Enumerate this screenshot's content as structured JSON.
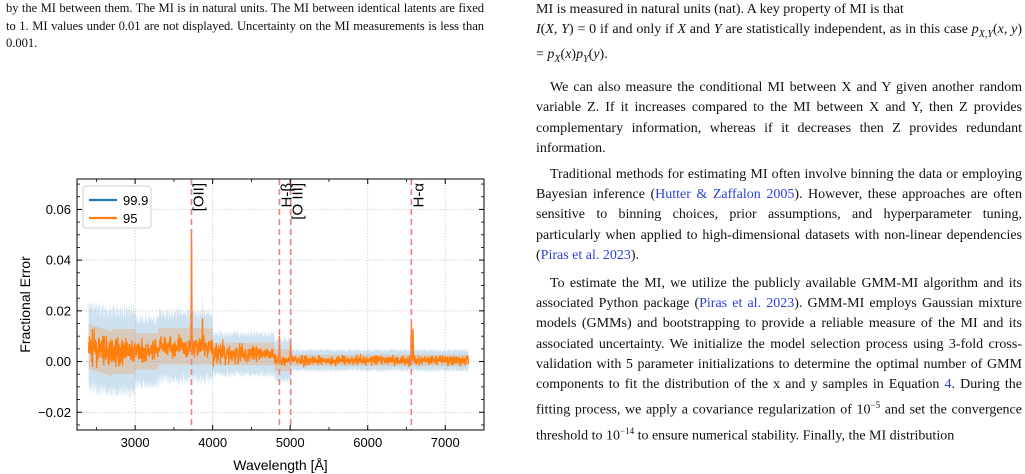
{
  "left_caption": "by the MI between them. The MI is in natural units. The MI between identical latents are fixed to 1. MI values under 0.01 are not displayed. Uncertainty on the MI measurements is less than 0.001.",
  "right_text": {
    "line_top": "MI is measured in natural units (nat). A key property of MI is that",
    "line_indep_a": "I(X, Y) = 0 if and only if X and Y are statistically independent, as in",
    "line_indep_b": "this case p",
    "para_cmi": "We can also measure the conditional MI between X and Y given another random variable Z. If it increases compared to the MI between X and Y, then Z provides complementary information, whereas if it decreases then Z provides redundant information.",
    "para_trad_a": "Traditional methods for estimating MI often involve binning the data or employing Bayesian inference (",
    "cite_hutter": "Hutter & Zaffalon 2005",
    "para_trad_b": "). However, these approaches are often sensitive to binning choices, prior assumptions, and hyperparameter tuning, particularly when applied to high-dimensional datasets with non-linear dependencies (",
    "cite_piras1": "Piras et al. 2023",
    "para_trad_c": ").",
    "para_gmm_a": "To estimate the MI, we utilize the publicly available GMM-MI algorithm and its associated Python package (",
    "cite_piras2": "Piras et al. 2023",
    "para_gmm_b": "). GMM-MI employs Gaussian mixture models (GMMs) and bootstrapping to provide a reliable measure of the MI and its associated uncertainty. We initialize the model selection process using 3-fold cross-validation with 5 parameter initializations to determine the optimal number of GMM components to fit the distribution of the x and y samples in Equation ",
    "eq_ref": "4",
    "para_gmm_c": ". During the fitting process, we apply a covariance regularization of 10",
    "exp_neg5": "−5",
    "para_gmm_d": " and set the convergence threshold",
    "line_cut": "to 10",
    "exp_neg14": "−14",
    "line_cut_b": " to ensure numerical stability. Finally, the MI distribution"
  },
  "chart_data": {
    "type": "line",
    "xlabel": "Wavelength [Å]",
    "ylabel": "Fractional Error",
    "xlim": [
      2250,
      7500
    ],
    "ylim": [
      -0.027,
      0.072
    ],
    "xticks": [
      3000,
      4000,
      5000,
      6000,
      7000
    ],
    "xtick_labels": [
      "3000",
      "4000",
      "5000",
      "6000",
      "7000"
    ],
    "yticks": [
      -0.02,
      0.0,
      0.02,
      0.04,
      0.06
    ],
    "ytick_labels": [
      "−0.02",
      "0.00",
      "0.02",
      "0.04",
      "0.06"
    ],
    "grid": true,
    "legend_position": "top-left",
    "series": [
      {
        "name": "99.9",
        "color": "#1f77b4"
      },
      {
        "name": "95",
        "color": "#ff7f0e"
      }
    ],
    "emission_lines": [
      {
        "label": "[OII]",
        "x": 3727
      },
      {
        "label": "H-β",
        "x": 4861
      },
      {
        "label": "[O III]",
        "x": 5007
      },
      {
        "label": "H-α",
        "x": 6563
      }
    ],
    "line_color": "#f08080",
    "range": [
      2400,
      7300
    ],
    "features": [
      {
        "x": 3727,
        "value": 0.046
      },
      {
        "x": 3870,
        "value": 0.012
      },
      {
        "x": 4861,
        "value": 0.008
      },
      {
        "x": 5007,
        "value": 0.009
      },
      {
        "x": 6563,
        "value": 0.016
      },
      {
        "x": 6585,
        "value": 0.012
      }
    ]
  }
}
